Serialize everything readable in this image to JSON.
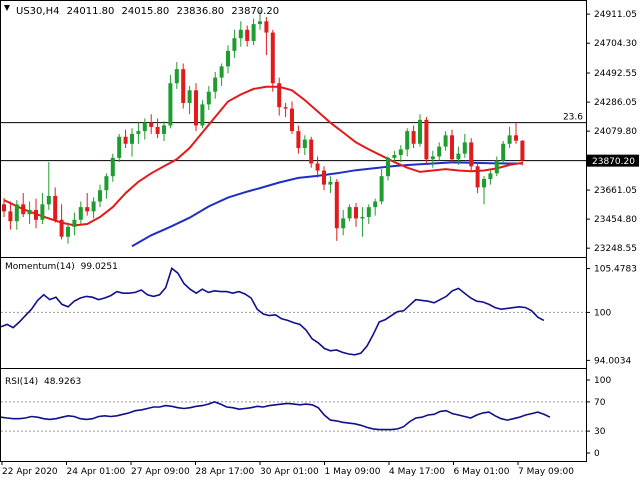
{
  "header": {
    "symbol": "US30,H4",
    "open": "24011.80",
    "high": "24015.80",
    "low": "23836.80",
    "close": "23870.20"
  },
  "colors": {
    "bull": "#1e9c2e",
    "bear": "#e11b1b",
    "ma_fast": "#e11b1b",
    "ma_slow": "#1f2fc4",
    "indicator": "#10108c",
    "price_marker_bg": "#000000",
    "grid": "#000000"
  },
  "chart_data": [
    {
      "type": "candlestick",
      "title": "US30,H4",
      "ylim": [
        23200,
        24990
      ],
      "yticks": [
        "24911.05",
        "24704.30",
        "24492.55",
        "24286.05",
        "24079.80",
        "23870.20",
        "23661.05",
        "23454.80",
        "23248.55"
      ],
      "ytick_values": [
        24911.05,
        24704.3,
        24492.55,
        24286.05,
        24079.8,
        23870.2,
        23661.05,
        23454.8,
        23248.55
      ],
      "current_price": "23870.20",
      "current_price_value": 23870.2,
      "hline_value": 24140,
      "hline_label": "23.6",
      "x_labels": [
        "22 Apr 2020",
        "24 Apr 01:00",
        "27 Apr 09:00",
        "28 Apr 17:00",
        "30 Apr 01:00",
        "1 May 09:00",
        "4 May 17:00",
        "6 May 01:00",
        "7 May 09:00"
      ],
      "x_label_index": [
        0,
        10,
        20,
        30,
        40,
        50,
        60,
        70,
        80
      ],
      "candles": [
        [
          23560,
          23605,
          23470,
          23510
        ],
        [
          23510,
          23580,
          23380,
          23440
        ],
        [
          23440,
          23590,
          23380,
          23560
        ],
        [
          23560,
          23640,
          23470,
          23490
        ],
        [
          23490,
          23580,
          23420,
          23520
        ],
        [
          23520,
          23600,
          23390,
          23450
        ],
        [
          23450,
          23640,
          23420,
          23560
        ],
        [
          23560,
          23860,
          23520,
          23620
        ],
        [
          23620,
          23680,
          23430,
          23450
        ],
        [
          23450,
          23560,
          23310,
          23330
        ],
        [
          23330,
          23430,
          23280,
          23400
        ],
        [
          23400,
          23500,
          23340,
          23450
        ],
        [
          23450,
          23580,
          23420,
          23540
        ],
        [
          23540,
          23640,
          23480,
          23510
        ],
        [
          23510,
          23610,
          23460,
          23580
        ],
        [
          23580,
          23700,
          23540,
          23660
        ],
        [
          23660,
          23780,
          23600,
          23760
        ],
        [
          23760,
          23920,
          23720,
          23890
        ],
        [
          23890,
          24060,
          23860,
          24040
        ],
        [
          24040,
          24090,
          23960,
          23990
        ],
        [
          23990,
          24100,
          23900,
          24060
        ],
        [
          24060,
          24140,
          23990,
          24080
        ],
        [
          24080,
          24170,
          24020,
          24140
        ],
        [
          24140,
          24200,
          24060,
          24110
        ],
        [
          24110,
          24170,
          24030,
          24060
        ],
        [
          24060,
          24150,
          24010,
          24120
        ],
        [
          24120,
          24480,
          24100,
          24420
        ],
        [
          24420,
          24570,
          24380,
          24520
        ],
        [
          24520,
          24560,
          24240,
          24280
        ],
        [
          24280,
          24400,
          24200,
          24370
        ],
        [
          24370,
          24420,
          24080,
          24120
        ],
        [
          24120,
          24300,
          24100,
          24270
        ],
        [
          24270,
          24400,
          24230,
          24360
        ],
        [
          24360,
          24500,
          24310,
          24460
        ],
        [
          24460,
          24560,
          24400,
          24540
        ],
        [
          24540,
          24690,
          24490,
          24650
        ],
        [
          24650,
          24800,
          24600,
          24740
        ],
        [
          24740,
          24860,
          24680,
          24800
        ],
        [
          24800,
          24830,
          24680,
          24720
        ],
        [
          24720,
          24880,
          24690,
          24840
        ],
        [
          24840,
          24940,
          24800,
          24860
        ],
        [
          24860,
          24890,
          24620,
          24780
        ],
        [
          24780,
          24800,
          24360,
          24420
        ],
        [
          24420,
          24460,
          24190,
          24250
        ],
        [
          24250,
          24280,
          24180,
          24240
        ],
        [
          24240,
          24290,
          24060,
          24080
        ],
        [
          24080,
          24120,
          23920,
          23960
        ],
        [
          23960,
          24050,
          23910,
          24020
        ],
        [
          24020,
          24040,
          23820,
          23850
        ],
        [
          23850,
          23900,
          23750,
          23800
        ],
        [
          23800,
          23830,
          23660,
          23700
        ],
        [
          23700,
          23760,
          23640,
          23720
        ],
        [
          23720,
          23740,
          23300,
          23390
        ],
        [
          23390,
          23520,
          23340,
          23460
        ],
        [
          23460,
          23560,
          23440,
          23540
        ],
        [
          23540,
          23570,
          23400,
          23460
        ],
        [
          23460,
          23540,
          23330,
          23470
        ],
        [
          23470,
          23560,
          23420,
          23540
        ],
        [
          23540,
          23600,
          23480,
          23580
        ],
        [
          23580,
          23810,
          23560,
          23760
        ],
        [
          23760,
          23900,
          23730,
          23890
        ],
        [
          23890,
          23940,
          23860,
          23910
        ],
        [
          23910,
          23980,
          23860,
          23950
        ],
        [
          23950,
          24100,
          23900,
          24080
        ],
        [
          24080,
          24120,
          23960,
          23990
        ],
        [
          23990,
          24200,
          23970,
          24160
        ],
        [
          24160,
          24180,
          23850,
          23880
        ],
        [
          23880,
          23940,
          23820,
          23900
        ],
        [
          23900,
          24000,
          23870,
          23970
        ],
        [
          23970,
          24080,
          23940,
          24050
        ],
        [
          24050,
          24090,
          23850,
          23880
        ],
        [
          23880,
          23970,
          23840,
          23920
        ],
        [
          23920,
          24060,
          23890,
          24000
        ],
        [
          24000,
          24030,
          23800,
          23830
        ],
        [
          23830,
          23860,
          23640,
          23680
        ],
        [
          23680,
          23760,
          23560,
          23740
        ],
        [
          23740,
          23800,
          23700,
          23780
        ],
        [
          23780,
          23900,
          23760,
          23870
        ],
        [
          23870,
          24010,
          23850,
          23990
        ],
        [
          23990,
          24110,
          23960,
          24050
        ],
        [
          24050,
          24140,
          23990,
          24011.8
        ],
        [
          24011.8,
          24015.8,
          23836.8,
          23870.2
        ]
      ],
      "ma_fast": [
        [
          0,
          23590
        ],
        [
          3,
          23525
        ],
        [
          6,
          23475
        ],
        [
          9,
          23430
        ],
        [
          11,
          23410
        ],
        [
          13,
          23420
        ],
        [
          15,
          23470
        ],
        [
          17,
          23540
        ],
        [
          19,
          23640
        ],
        [
          21,
          23720
        ],
        [
          23,
          23780
        ],
        [
          25,
          23830
        ],
        [
          27,
          23880
        ],
        [
          29,
          23960
        ],
        [
          31,
          24070
        ],
        [
          33,
          24180
        ],
        [
          35,
          24290
        ],
        [
          37,
          24340
        ],
        [
          39,
          24380
        ],
        [
          41,
          24395
        ],
        [
          43,
          24395
        ],
        [
          45,
          24370
        ],
        [
          47,
          24300
        ],
        [
          49,
          24220
        ],
        [
          51,
          24140
        ],
        [
          53,
          24070
        ],
        [
          55,
          24000
        ],
        [
          57,
          23950
        ],
        [
          59,
          23905
        ],
        [
          61,
          23860
        ],
        [
          63,
          23820
        ],
        [
          65,
          23790
        ],
        [
          67,
          23800
        ],
        [
          69,
          23810
        ],
        [
          71,
          23800
        ],
        [
          73,
          23795
        ],
        [
          75,
          23800
        ],
        [
          77,
          23815
        ],
        [
          79,
          23840
        ],
        [
          81,
          23855
        ]
      ],
      "ma_slow": [
        [
          20,
          23262
        ],
        [
          23,
          23340
        ],
        [
          26,
          23400
        ],
        [
          29,
          23465
        ],
        [
          32,
          23545
        ],
        [
          35,
          23608
        ],
        [
          38,
          23650
        ],
        [
          40,
          23675
        ],
        [
          43,
          23715
        ],
        [
          46,
          23748
        ],
        [
          49,
          23762
        ],
        [
          52,
          23780
        ],
        [
          55,
          23802
        ],
        [
          58,
          23817
        ],
        [
          61,
          23832
        ],
        [
          64,
          23842
        ],
        [
          67,
          23850
        ],
        [
          70,
          23858
        ],
        [
          73,
          23855
        ],
        [
          76,
          23852
        ],
        [
          79,
          23850
        ],
        [
          81,
          23850
        ]
      ]
    },
    {
      "type": "line",
      "title": "Momentum(14)",
      "current_value": "99.0251",
      "yticks": [
        "105.4783",
        "100",
        "94.0034"
      ],
      "ytick_values": [
        105.4783,
        100,
        94.0034
      ],
      "ylim": [
        93.3,
        106.3
      ],
      "reference_line": 100,
      "series": [
        {
          "name": "Momentum(14)",
          "values": [
            98.2,
            98.5,
            98.1,
            98.8,
            99.6,
            100.4,
            101.5,
            102.2,
            101.6,
            101.9,
            101.0,
            100.7,
            101.4,
            101.8,
            102.0,
            101.9,
            101.6,
            101.8,
            102.1,
            102.6,
            102.4,
            102.4,
            102.5,
            102.8,
            102.2,
            102.0,
            102.2,
            103.1,
            105.5,
            104.9,
            103.6,
            102.9,
            102.4,
            102.9,
            102.5,
            102.7,
            102.6,
            102.6,
            102.4,
            102.6,
            102.3,
            101.8,
            100.4,
            99.8,
            99.6,
            99.7,
            99.2,
            99.0,
            98.7,
            98.5,
            97.8,
            96.7,
            96.2,
            95.5,
            95.2,
            95.3,
            95.0,
            94.8,
            94.7,
            94.9,
            95.8,
            97.2,
            98.8,
            99.1,
            99.6,
            100.1,
            100.2,
            100.9,
            101.6,
            101.5,
            101.4,
            101.2,
            101.6,
            102.0,
            102.7,
            103.0,
            102.4,
            101.8,
            101.4,
            101.3,
            101.0,
            100.6,
            100.4,
            100.5,
            100.6,
            100.7,
            100.6,
            100.2,
            99.4,
            99.0
          ]
        }
      ]
    },
    {
      "type": "line",
      "title": "RSI(14)",
      "current_value": "48.9263",
      "yticks": [
        "100",
        "70",
        "30",
        "0"
      ],
      "ytick_values": [
        100,
        70,
        30,
        0
      ],
      "ylim": [
        0,
        100
      ],
      "levels": [
        70,
        30
      ],
      "series": [
        {
          "name": "RSI(14)",
          "values": [
            49,
            48,
            47,
            47,
            48,
            50,
            49,
            47,
            46,
            47,
            49,
            51,
            50,
            47,
            46,
            47,
            50,
            51,
            50,
            51,
            53,
            55,
            58,
            59,
            61,
            63,
            63,
            65,
            64,
            62,
            61,
            62,
            64,
            65,
            67,
            70,
            67,
            63,
            62,
            60,
            61,
            62,
            64,
            63,
            65,
            66,
            67,
            68,
            67,
            66,
            67,
            66,
            62,
            52,
            45,
            44,
            42,
            41,
            40,
            38,
            35,
            33,
            32,
            32,
            32,
            33,
            36,
            43,
            48,
            49,
            52,
            53,
            57,
            58,
            54,
            52,
            50,
            48,
            52,
            55,
            56,
            51,
            47,
            45,
            47,
            49,
            52,
            54,
            56,
            53,
            49
          ]
        }
      ]
    }
  ]
}
